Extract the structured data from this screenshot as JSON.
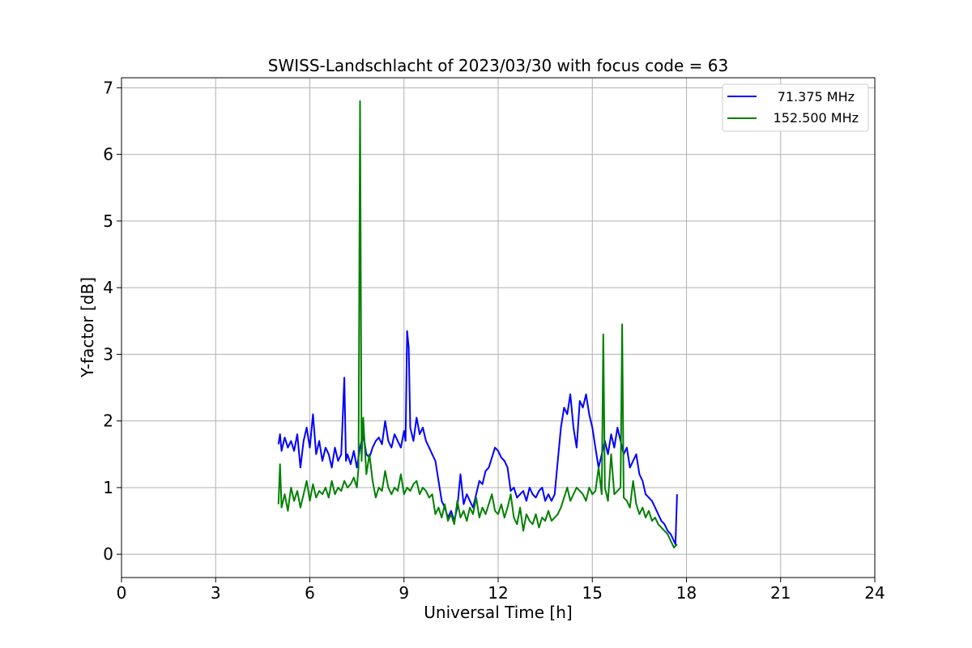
{
  "chart_data": {
    "type": "line",
    "title": "SWISS-Landschlacht of 2023/03/30 with focus code = 63",
    "xlabel": "Universal Time [h]",
    "ylabel": "Y-factor [dB]",
    "xlim": [
      0,
      24
    ],
    "ylim": [
      -0.35,
      7.15
    ],
    "xticks": [
      0,
      3,
      6,
      9,
      12,
      15,
      18,
      21,
      24
    ],
    "yticks": [
      0,
      1,
      2,
      3,
      4,
      5,
      6,
      7
    ],
    "grid": true,
    "legend_position": "top-right",
    "series": [
      {
        "name": "71.375 MHz",
        "color": "#0000ff",
        "x": [
          5.0,
          5.05,
          5.1,
          5.2,
          5.3,
          5.4,
          5.5,
          5.6,
          5.7,
          5.8,
          5.9,
          6.0,
          6.1,
          6.2,
          6.3,
          6.4,
          6.5,
          6.6,
          6.7,
          6.8,
          6.9,
          7.0,
          7.1,
          7.15,
          7.2,
          7.3,
          7.4,
          7.5,
          7.6,
          7.7,
          7.8,
          7.9,
          8.0,
          8.1,
          8.2,
          8.3,
          8.4,
          8.5,
          8.6,
          8.7,
          8.8,
          8.9,
          9.0,
          9.05,
          9.1,
          9.15,
          9.2,
          9.3,
          9.4,
          9.5,
          9.6,
          9.7,
          9.8,
          9.9,
          10.0,
          10.1,
          10.2,
          10.3,
          10.4,
          10.5,
          10.6,
          10.7,
          10.8,
          10.9,
          11.0,
          11.1,
          11.2,
          11.3,
          11.4,
          11.5,
          11.6,
          11.7,
          11.8,
          11.9,
          12.0,
          12.1,
          12.2,
          12.3,
          12.4,
          12.5,
          12.6,
          12.7,
          12.8,
          12.9,
          13.0,
          13.1,
          13.2,
          13.3,
          13.4,
          13.5,
          13.6,
          13.7,
          13.8,
          13.9,
          14.0,
          14.1,
          14.2,
          14.3,
          14.4,
          14.5,
          14.6,
          14.7,
          14.8,
          14.9,
          15.0,
          15.1,
          15.2,
          15.3,
          15.4,
          15.5,
          15.6,
          15.7,
          15.8,
          15.9,
          16.0,
          16.1,
          16.2,
          16.3,
          16.4,
          16.5,
          16.6,
          16.7,
          16.8,
          16.9,
          17.0,
          17.1,
          17.2,
          17.3,
          17.4,
          17.5,
          17.6,
          17.65,
          17.7
        ],
        "y": [
          1.65,
          1.8,
          1.55,
          1.75,
          1.6,
          1.7,
          1.55,
          1.8,
          1.3,
          1.7,
          1.9,
          1.6,
          2.1,
          1.5,
          1.7,
          1.4,
          1.6,
          1.5,
          1.3,
          1.6,
          1.4,
          1.5,
          2.65,
          1.4,
          1.5,
          1.35,
          1.55,
          1.3,
          1.6,
          1.8,
          1.5,
          1.45,
          1.6,
          1.7,
          1.75,
          1.65,
          2.0,
          1.7,
          1.6,
          1.8,
          1.7,
          1.6,
          1.85,
          1.7,
          3.35,
          3.1,
          1.9,
          1.7,
          2.05,
          1.8,
          1.9,
          1.7,
          1.6,
          1.5,
          1.4,
          1.1,
          0.8,
          0.7,
          0.55,
          0.65,
          0.5,
          0.7,
          1.2,
          0.75,
          0.9,
          0.8,
          0.7,
          0.9,
          1.1,
          1.05,
          1.25,
          1.3,
          1.45,
          1.6,
          1.55,
          1.45,
          1.4,
          1.3,
          0.95,
          1.0,
          0.85,
          0.9,
          0.95,
          0.8,
          1.0,
          0.9,
          0.85,
          0.95,
          1.0,
          0.8,
          0.9,
          0.8,
          0.9,
          1.4,
          1.9,
          2.2,
          2.1,
          2.4,
          1.9,
          1.6,
          2.3,
          2.2,
          2.4,
          2.1,
          1.9,
          1.6,
          1.3,
          1.5,
          1.7,
          1.5,
          1.8,
          1.6,
          1.9,
          1.7,
          1.5,
          1.6,
          1.3,
          1.4,
          1.5,
          1.2,
          1.1,
          0.9,
          0.85,
          0.8,
          0.7,
          0.6,
          0.5,
          0.45,
          0.35,
          0.3,
          0.2,
          0.15,
          0.9
        ]
      },
      {
        "name": "152.500 MHz",
        "color": "#008000",
        "x": [
          5.0,
          5.05,
          5.1,
          5.2,
          5.3,
          5.4,
          5.5,
          5.6,
          5.7,
          5.8,
          5.9,
          6.0,
          6.1,
          6.2,
          6.3,
          6.4,
          6.5,
          6.6,
          6.7,
          6.8,
          6.9,
          7.0,
          7.1,
          7.2,
          7.3,
          7.4,
          7.5,
          7.55,
          7.6,
          7.65,
          7.7,
          7.8,
          7.9,
          8.0,
          8.1,
          8.2,
          8.3,
          8.4,
          8.5,
          8.6,
          8.7,
          8.8,
          8.9,
          9.0,
          9.1,
          9.2,
          9.3,
          9.4,
          9.5,
          9.6,
          9.7,
          9.8,
          9.9,
          10.0,
          10.1,
          10.2,
          10.3,
          10.4,
          10.5,
          10.6,
          10.7,
          10.8,
          10.9,
          11.0,
          11.1,
          11.2,
          11.3,
          11.4,
          11.5,
          11.6,
          11.7,
          11.8,
          11.9,
          12.0,
          12.1,
          12.2,
          12.3,
          12.4,
          12.5,
          12.6,
          12.7,
          12.8,
          12.9,
          13.0,
          13.1,
          13.2,
          13.3,
          13.4,
          13.5,
          13.6,
          13.7,
          13.8,
          13.9,
          14.0,
          14.1,
          14.2,
          14.3,
          14.4,
          14.5,
          14.6,
          14.7,
          14.8,
          14.9,
          15.0,
          15.1,
          15.2,
          15.3,
          15.35,
          15.4,
          15.5,
          15.6,
          15.7,
          15.8,
          15.9,
          15.95,
          16.0,
          16.1,
          16.2,
          16.3,
          16.4,
          16.5,
          16.6,
          16.7,
          16.8,
          16.9,
          17.0,
          17.1,
          17.2,
          17.3,
          17.4,
          17.5,
          17.6,
          17.7
        ],
        "y": [
          0.75,
          1.35,
          0.7,
          0.9,
          0.65,
          1.0,
          0.8,
          0.95,
          0.7,
          0.9,
          1.1,
          0.8,
          1.05,
          0.85,
          0.95,
          0.9,
          1.0,
          0.85,
          1.1,
          0.9,
          1.0,
          0.95,
          1.1,
          1.0,
          1.05,
          1.15,
          1.0,
          1.3,
          6.8,
          1.4,
          2.05,
          1.2,
          1.5,
          1.1,
          0.85,
          1.0,
          0.95,
          1.25,
          1.0,
          0.9,
          1.0,
          0.95,
          1.2,
          0.9,
          1.0,
          0.95,
          1.05,
          1.1,
          0.9,
          1.0,
          0.95,
          0.85,
          0.9,
          0.6,
          0.7,
          0.55,
          0.75,
          0.5,
          0.6,
          0.45,
          0.8,
          0.55,
          0.65,
          0.5,
          0.7,
          0.6,
          0.85,
          0.55,
          0.7,
          0.6,
          0.75,
          0.9,
          0.65,
          0.6,
          0.75,
          0.55,
          0.7,
          0.9,
          0.55,
          0.45,
          0.7,
          0.35,
          0.6,
          0.5,
          0.45,
          0.6,
          0.4,
          0.55,
          0.5,
          0.65,
          0.5,
          0.55,
          0.6,
          0.7,
          0.85,
          1.0,
          0.8,
          0.9,
          1.0,
          0.95,
          0.9,
          0.8,
          1.0,
          0.9,
          0.95,
          1.3,
          0.9,
          3.3,
          1.0,
          0.8,
          1.5,
          0.9,
          0.95,
          1.0,
          3.45,
          0.85,
          0.8,
          0.7,
          1.1,
          0.75,
          0.6,
          0.7,
          0.55,
          0.65,
          0.5,
          0.55,
          0.45,
          0.4,
          0.35,
          0.3,
          0.2,
          0.1,
          0.15
        ]
      }
    ]
  }
}
